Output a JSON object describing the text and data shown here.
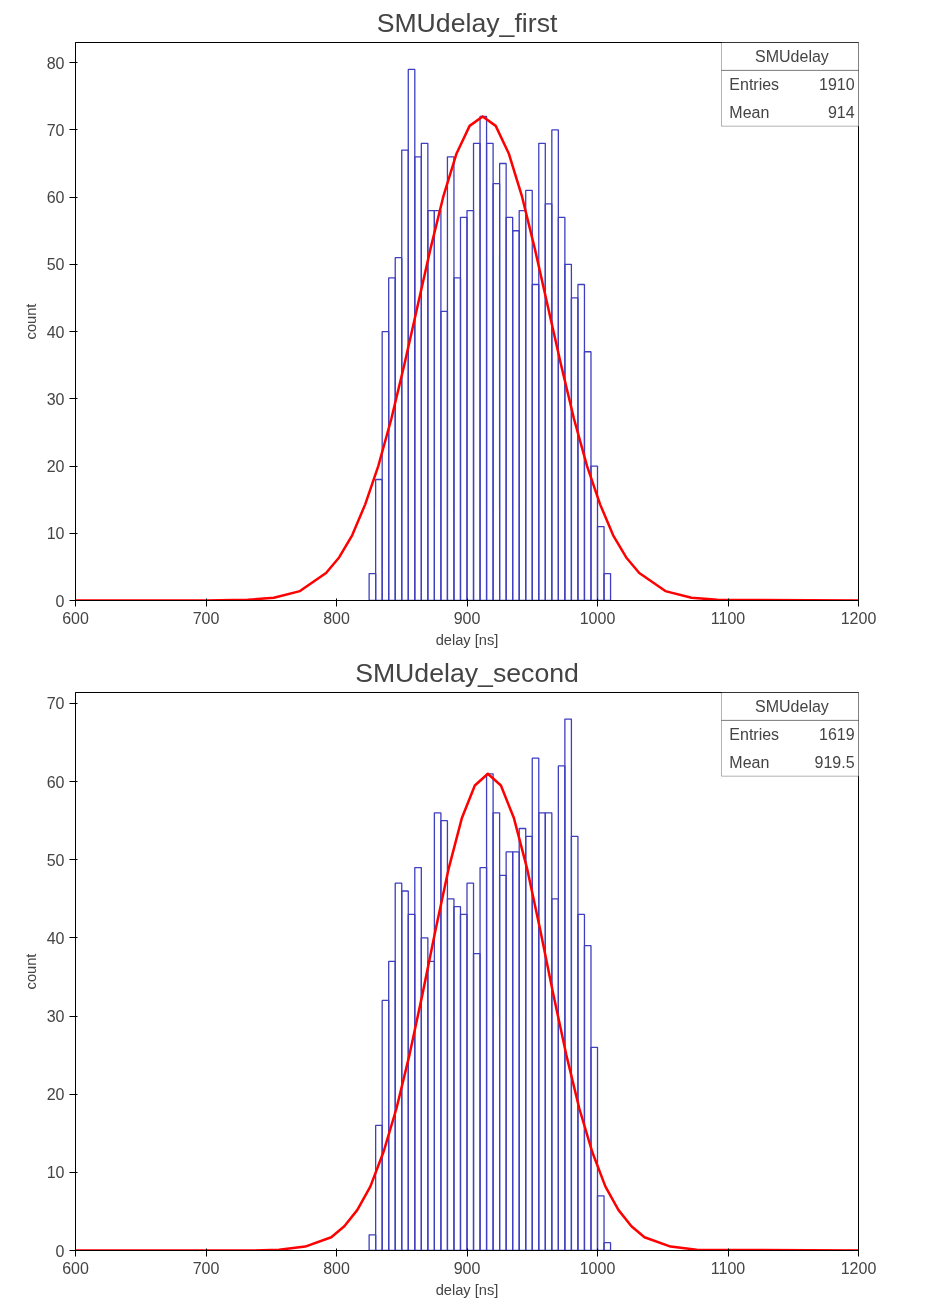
{
  "chart_data": [
    {
      "type": "histogram",
      "title": "SMUdelay_first",
      "xlabel": "delay [ns]",
      "ylabel": "count",
      "color": "#3f3fbf",
      "bins": [
        825,
        830,
        835,
        840,
        845,
        850,
        855,
        860,
        865,
        870,
        875,
        880,
        885,
        890,
        895,
        900,
        905,
        910,
        915,
        920,
        925,
        930,
        935,
        940,
        945,
        950,
        955,
        960,
        965,
        970,
        975,
        980,
        985,
        990,
        995,
        1000,
        1005,
        1010
      ],
      "values": [
        4,
        18,
        40,
        48,
        51,
        67,
        79,
        66,
        68,
        58,
        58,
        43,
        66,
        48,
        57,
        58,
        68,
        72,
        68,
        62,
        65,
        57,
        55,
        58,
        61,
        47,
        68,
        59,
        70,
        57,
        50,
        45,
        47,
        37,
        20,
        11,
        4
      ],
      "series": [
        {
          "type": "line",
          "color": "#ff0000",
          "x": [
            600,
            700,
            732,
            752,
            772,
            792,
            802,
            812,
            822,
            832,
            842,
            852,
            862,
            872,
            882,
            892,
            902,
            912,
            922,
            932,
            942,
            952,
            962,
            972,
            982,
            992,
            1002,
            1012,
            1022,
            1032,
            1052,
            1072,
            1092,
            1200
          ],
          "values": [
            0,
            0,
            0.1,
            0.4,
            1.4,
            4.1,
            6.4,
            9.7,
            14.3,
            20.0,
            27.0,
            35.1,
            43.7,
            52.3,
            60.2,
            66.5,
            70.6,
            72,
            70.6,
            66.5,
            60.2,
            52.3,
            43.7,
            35.1,
            27.0,
            20.0,
            14.3,
            9.7,
            6.4,
            4.1,
            1.4,
            0.4,
            0.1,
            0
          ]
        }
      ],
      "xlim": [
        600,
        1200
      ],
      "ylim": [
        0,
        83
      ],
      "xticks": [
        600,
        700,
        800,
        900,
        1000,
        1100,
        1200
      ],
      "yticks": [
        0,
        10,
        20,
        30,
        40,
        50,
        60,
        70,
        80
      ],
      "grid": false,
      "annotations": [
        "SMUdelay",
        "Entries",
        "1910",
        "Mean",
        "914"
      ]
    },
    {
      "type": "histogram",
      "title": "SMUdelay_second",
      "xlabel": "delay [ns]",
      "ylabel": "count",
      "color": "#3f3fbf",
      "bins": [
        825,
        830,
        835,
        840,
        845,
        850,
        855,
        860,
        865,
        870,
        875,
        880,
        885,
        890,
        895,
        900,
        905,
        910,
        915,
        920,
        925,
        930,
        935,
        940,
        945,
        950,
        955,
        960,
        965,
        970,
        975,
        980,
        985,
        990,
        995,
        1000,
        1005,
        1010
      ],
      "values": [
        2,
        16,
        32,
        37,
        47,
        46,
        43,
        49,
        40,
        37,
        56,
        55,
        45,
        44,
        43,
        47,
        38,
        49,
        61,
        56,
        48,
        51,
        51,
        54,
        53,
        63,
        56,
        56,
        45,
        62,
        68,
        53,
        43,
        39,
        26,
        7,
        1
      ],
      "series": [
        {
          "type": "line",
          "color": "#ff0000",
          "x": [
            600,
            736,
            756,
            776,
            796,
            806,
            816,
            826,
            836,
            846,
            856,
            866,
            876,
            886,
            896,
            906,
            916,
            926,
            936,
            946,
            956,
            966,
            976,
            986,
            996,
            1006,
            1016,
            1026,
            1036,
            1056,
            1076,
            1200
          ],
          "values": [
            0,
            0,
            0.1,
            0.5,
            1.7,
            3.1,
            5.2,
            8.2,
            12.6,
            18.2,
            25.1,
            32.9,
            41.1,
            48.9,
            55.3,
            59.5,
            61,
            59.5,
            55.3,
            48.9,
            41.1,
            32.9,
            25.1,
            18.2,
            12.6,
            8.2,
            5.2,
            3.1,
            1.7,
            0.5,
            0.1,
            0
          ]
        }
      ],
      "xlim": [
        600,
        1200
      ],
      "ylim": [
        0,
        71.4
      ],
      "xticks": [
        600,
        700,
        800,
        900,
        1000,
        1100,
        1200
      ],
      "yticks": [
        0,
        10,
        20,
        30,
        40,
        50,
        60,
        70
      ],
      "grid": false,
      "annotations": [
        "SMUdelay",
        "Entries",
        "1619",
        "Mean",
        "919.5"
      ]
    }
  ]
}
